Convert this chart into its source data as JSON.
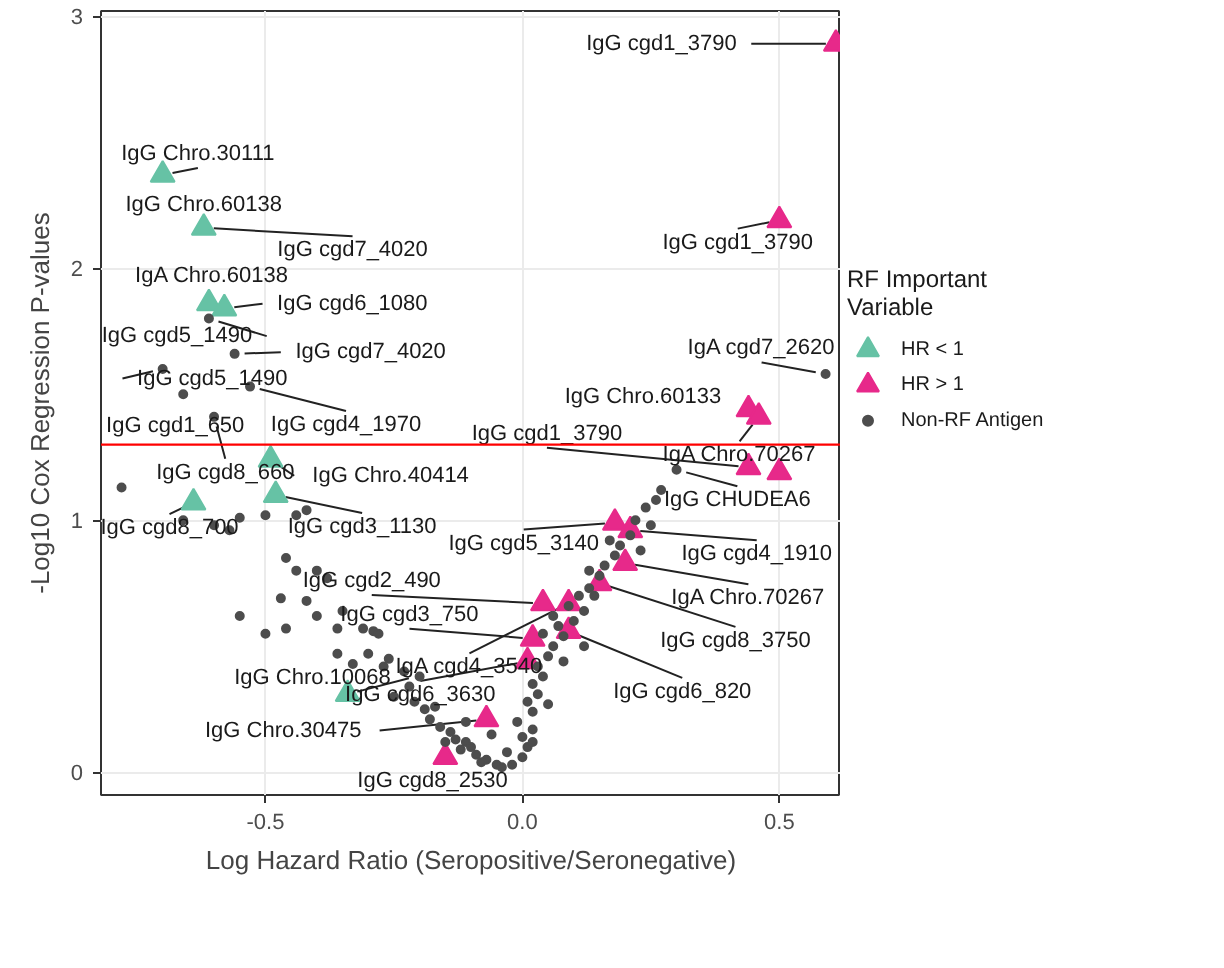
{
  "chart_data": {
    "type": "scatter",
    "xlabel": "Log Hazard Ratio (Seropositive/Seronegative)",
    "ylabel": "-Log10 Cox Regression P-values",
    "legend_title": "RF Important\nVariable",
    "legend": "right",
    "grid": true,
    "xlim": [
      -0.82,
      0.62
    ],
    "ylim": [
      -0.09,
      3.02
    ],
    "xticks": [
      -0.5,
      {
        "value": 0,
        "label": "0.0"
      },
      0.5
    ],
    "yticks": [
      0,
      1,
      2,
      3
    ],
    "ref_lines": [
      {
        "axis": "y",
        "value": 1.3,
        "color": "#ff0000"
      }
    ],
    "series": [
      {
        "name": "HR < 1",
        "color": "#66c2a5",
        "marker": "triangle",
        "x": [
          -0.7,
          -0.62,
          -0.61,
          -0.58,
          -0.49,
          -0.48,
          -0.64,
          -0.34
        ],
        "values": [
          2.37,
          2.16,
          1.86,
          1.84,
          1.24,
          1.1,
          1.07,
          0.31
        ]
      },
      {
        "name": "HR > 1",
        "color": "#e7298a",
        "marker": "triangle",
        "x": [
          0.61,
          0.5,
          0.44,
          0.46,
          0.44,
          0.5,
          0.18,
          0.21,
          0.2,
          0.15,
          0.04,
          0.09,
          0.09,
          0.02,
          0.01,
          -0.07,
          -0.15
        ],
        "values": [
          2.89,
          2.19,
          1.44,
          1.41,
          1.21,
          1.19,
          0.99,
          0.96,
          0.83,
          0.75,
          0.67,
          0.67,
          0.56,
          0.53,
          0.44,
          0.21,
          0.06
        ]
      },
      {
        "name": "Non-RF Antigen",
        "color": "#4d4d4d",
        "marker": "circle",
        "x": [
          -0.61,
          -0.56,
          -0.7,
          -0.53,
          -0.66,
          -0.6,
          0.59,
          0.3,
          -0.78,
          -0.66,
          -0.6,
          -0.57,
          -0.55,
          -0.5,
          -0.44,
          -0.42,
          -0.46,
          -0.4,
          -0.44,
          -0.38,
          -0.47,
          -0.42,
          -0.4,
          -0.35,
          -0.55,
          -0.5,
          -0.46,
          -0.36,
          -0.29,
          -0.31,
          -0.28,
          -0.36,
          -0.3,
          -0.33,
          -0.27,
          -0.25,
          -0.22,
          -0.21,
          -0.19,
          -0.17,
          -0.18,
          -0.16,
          -0.14,
          -0.13,
          -0.11,
          -0.1,
          -0.09,
          -0.07,
          -0.05,
          -0.04,
          -0.12,
          -0.15,
          -0.08,
          -0.02,
          0.0,
          0.01,
          0.0,
          0.02,
          -0.01,
          0.02,
          0.01,
          0.03,
          0.02,
          0.04,
          0.03,
          0.05,
          0.06,
          0.04,
          0.07,
          0.08,
          0.1,
          0.06,
          0.09,
          0.11,
          0.12,
          0.13,
          0.15,
          0.14,
          0.16,
          0.18,
          0.17,
          0.19,
          0.21,
          0.22,
          0.24,
          0.26,
          0.23,
          0.27,
          0.12,
          0.08,
          0.05,
          -0.03,
          0.02,
          -0.2,
          -0.23,
          -0.26,
          -0.11,
          -0.06,
          0.13,
          0.25
        ],
        "values": [
          1.8,
          1.66,
          1.6,
          1.53,
          1.5,
          1.41,
          1.58,
          1.2,
          1.13,
          1.0,
          0.98,
          0.96,
          1.01,
          1.02,
          1.02,
          1.04,
          0.85,
          0.8,
          0.8,
          0.77,
          0.69,
          0.68,
          0.62,
          0.64,
          0.62,
          0.55,
          0.57,
          0.57,
          0.56,
          0.57,
          0.55,
          0.47,
          0.47,
          0.43,
          0.42,
          0.3,
          0.34,
          0.28,
          0.25,
          0.26,
          0.21,
          0.18,
          0.16,
          0.13,
          0.12,
          0.1,
          0.07,
          0.05,
          0.03,
          0.02,
          0.09,
          0.12,
          0.04,
          0.03,
          0.06,
          0.1,
          0.14,
          0.17,
          0.2,
          0.24,
          0.28,
          0.31,
          0.35,
          0.38,
          0.42,
          0.46,
          0.5,
          0.55,
          0.58,
          0.54,
          0.6,
          0.62,
          0.66,
          0.7,
          0.64,
          0.73,
          0.78,
          0.7,
          0.82,
          0.86,
          0.92,
          0.9,
          0.94,
          1.0,
          1.05,
          1.08,
          0.88,
          1.12,
          0.5,
          0.44,
          0.27,
          0.08,
          0.12,
          0.38,
          0.4,
          0.45,
          0.2,
          0.15,
          0.8,
          0.98
        ]
      }
    ],
    "annotations": [
      {
        "text": "IgG Chro.30111",
        "x": -0.7,
        "y": 2.37
      },
      {
        "text": "IgG Chro.60138",
        "x": -0.62,
        "y": 2.16
      },
      {
        "text": "IgG cgd7_4020",
        "x": -0.62,
        "y": 2.16
      },
      {
        "text": "IgA Chro.60138",
        "x": -0.61,
        "y": 1.86
      },
      {
        "text": "IgG cgd6_1080",
        "x": -0.58,
        "y": 1.84
      },
      {
        "text": "IgG cgd5_1490",
        "x": -0.61,
        "y": 1.8
      },
      {
        "text": "IgG cgd7_4020",
        "x": -0.56,
        "y": 1.66
      },
      {
        "text": "IgG cgd5_1490",
        "x": -0.7,
        "y": 1.6
      },
      {
        "text": "IgG cgd4_1970",
        "x": -0.53,
        "y": 1.53
      },
      {
        "text": "IgG cgd1_650",
        "x": -0.66,
        "y": 1.5
      },
      {
        "text": "IgG cgd8_660",
        "x": -0.6,
        "y": 1.41
      },
      {
        "text": "IgG Chro.40414",
        "x": -0.49,
        "y": 1.24
      },
      {
        "text": "IgG cgd8_700",
        "x": -0.64,
        "y": 1.07
      },
      {
        "text": "IgG cgd3_1130",
        "x": -0.48,
        "y": 1.1
      },
      {
        "text": "IgG cgd2_490",
        "x": 0.04,
        "y": 0.67
      },
      {
        "text": "IgG cgd3_750",
        "x": 0.02,
        "y": 0.53
      },
      {
        "text": "IgG Chro.10068",
        "x": -0.34,
        "y": 0.31
      },
      {
        "text": "IgG cgd6_3630",
        "x": 0.01,
        "y": 0.44
      },
      {
        "text": "IgG Chro.30475",
        "x": -0.07,
        "y": 0.21
      },
      {
        "text": "IgG cgd8_2530",
        "x": -0.15,
        "y": 0.06
      },
      {
        "text": "IgG cgd1_3790",
        "x": 0.61,
        "y": 2.89
      },
      {
        "text": "IgG cgd1_3790",
        "x": 0.5,
        "y": 2.19
      },
      {
        "text": "IgA cgd7_2620",
        "x": 0.59,
        "y": 1.58
      },
      {
        "text": "IgG Chro.60133",
        "x": 0.44,
        "y": 1.44
      },
      {
        "text": "IgA Chro.70267",
        "x": 0.46,
        "y": 1.41
      },
      {
        "text": "IgG cgd1_3790",
        "x": 0.44,
        "y": 1.21
      },
      {
        "text": "IgG CHUDEA6",
        "x": 0.3,
        "y": 1.2
      },
      {
        "text": "IgG cgd5_3140",
        "x": 0.18,
        "y": 0.99
      },
      {
        "text": "IgG cgd4_1910",
        "x": 0.21,
        "y": 0.96
      },
      {
        "text": "IgA Chro.70267",
        "x": 0.2,
        "y": 0.83
      },
      {
        "text": "IgA cgd4_3540",
        "x": 0.09,
        "y": 0.67
      },
      {
        "text": "IgG cgd8_3750",
        "x": 0.15,
        "y": 0.75
      },
      {
        "text": "IgG cgd6_820",
        "x": 0.09,
        "y": 0.56
      }
    ]
  }
}
